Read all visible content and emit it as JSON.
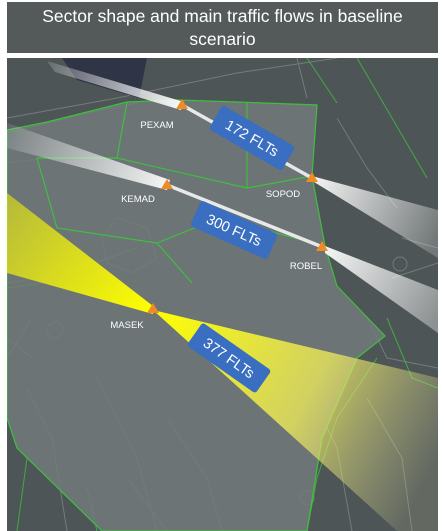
{
  "title": "Sector shape and main traffic flows in baseline scenario",
  "waypoints": [
    {
      "id": "pexam",
      "name": "PEXAM"
    },
    {
      "id": "sopod",
      "name": "SOPOD"
    },
    {
      "id": "kemad",
      "name": "KEMAD"
    },
    {
      "id": "robel",
      "name": "ROBEL"
    },
    {
      "id": "masek",
      "name": "MASEK"
    }
  ],
  "flows": [
    {
      "id": "flow-1",
      "label": "172 FLTs",
      "from": "PEXAM",
      "to": "SOPOD"
    },
    {
      "id": "flow-2",
      "label": "300 FLTs",
      "from": "KEMAD",
      "to": "ROBEL"
    },
    {
      "id": "flow-3",
      "label": "377 FLTs",
      "from": "MASEK",
      "to": ""
    }
  ],
  "colors": {
    "background": "#4e5556",
    "sector_fill": "#6f7777",
    "sector_border": "#3fbf3f",
    "waypoint_marker": "#f08a24",
    "flow_badge": "#3a6ec0",
    "flow_major": "#ffff00",
    "flow_minor": "#ffffff"
  }
}
